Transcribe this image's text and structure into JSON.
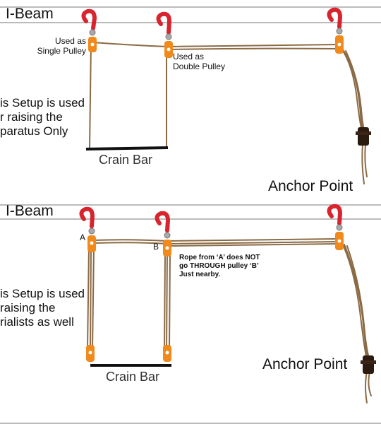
{
  "colors": {
    "rope": "#8a6a44",
    "hook": "#d8242e",
    "pulley": "#f08a1c",
    "bar": "#111111",
    "beam_line": "#777777",
    "anchor": "#2a1a10"
  },
  "panel_top": {
    "beam_label": "I-Beam",
    "pulley_single_label": [
      "Used as",
      "Single Pulley"
    ],
    "pulley_double_label": [
      "Used as",
      "Double Pulley"
    ],
    "setup_text": [
      "is Setup is used",
      "r raising the",
      "paratus Only"
    ],
    "bar_label": "Crain Bar",
    "anchor_label": "Anchor Point"
  },
  "panel_bottom": {
    "beam_label": "I-Beam",
    "pulley_a": "A",
    "pulley_b": "B",
    "rope_note": [
      "Rope from ‘A’ does NOT",
      "go THROUGH pulley ‘B’",
      "Just nearby."
    ],
    "setup_text": [
      "is Setup is used",
      "raising the",
      "rialists as well"
    ],
    "bar_label": "Crain Bar",
    "anchor_label": "Anchor Point"
  },
  "icons": [
    "hook-icon",
    "pulley-icon",
    "rope-cleat-icon"
  ]
}
